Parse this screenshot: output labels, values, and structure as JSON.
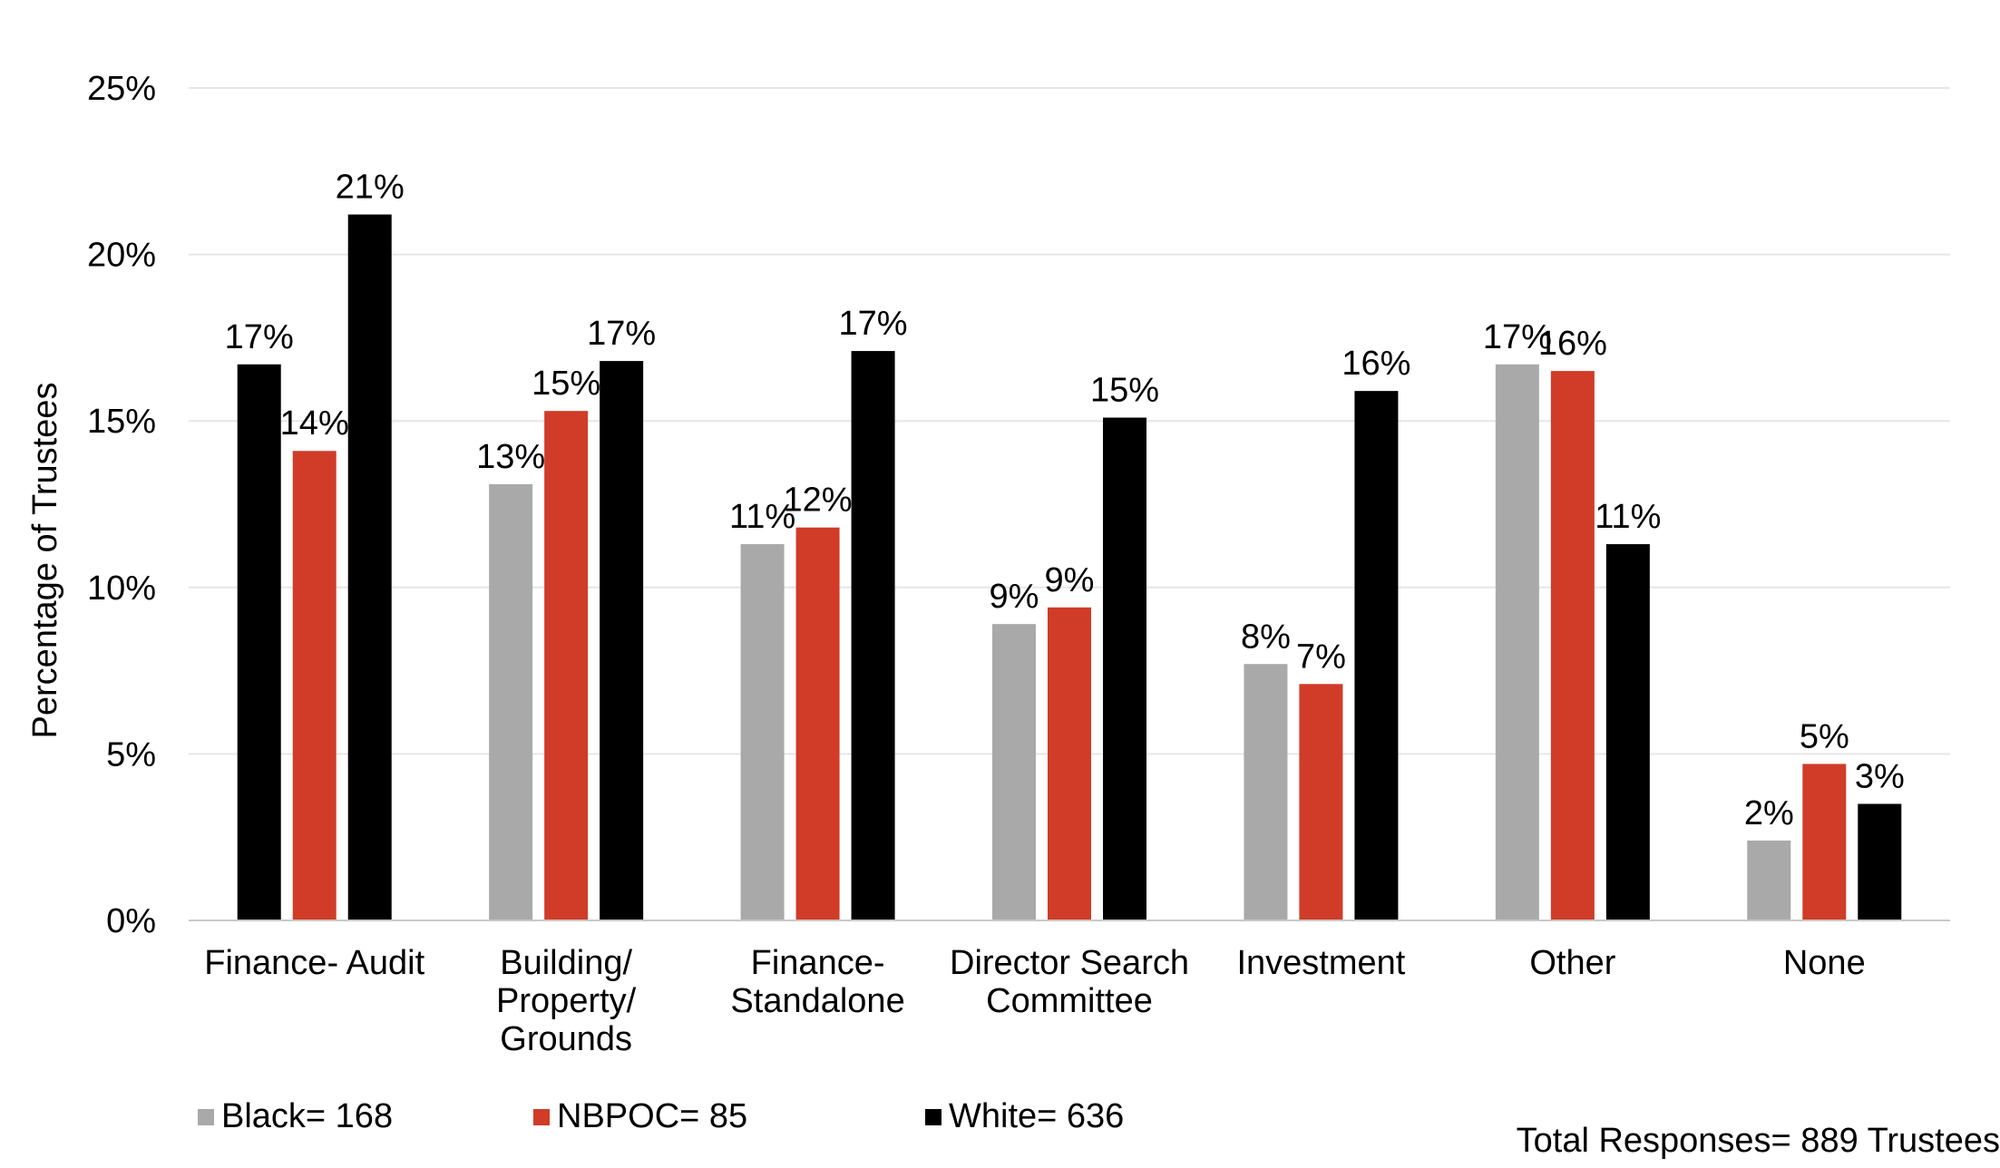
{
  "chart_data": {
    "type": "bar",
    "title": "",
    "xlabel": "",
    "ylabel": "Percentage of Trustees",
    "ylim": [
      0,
      25
    ],
    "yticks": [
      "0%",
      "5%",
      "10%",
      "15%",
      "20%",
      "25%"
    ],
    "grid": true,
    "legend_position": "bottom-left",
    "categories": [
      [
        "Finance- Audit"
      ],
      [
        "Building/",
        "Property/",
        "Grounds"
      ],
      [
        "Finance-",
        "Standalone"
      ],
      [
        "Director Search",
        "Committee"
      ],
      [
        "Investment"
      ],
      [
        "Other"
      ],
      [
        "None"
      ]
    ],
    "series": [
      {
        "name": "Black= 168",
        "color": "#000000",
        "values": [
          16.7,
          13.1,
          11.3,
          8.9,
          7.7,
          16.7,
          2.4
        ],
        "labels": [
          "17%",
          "13%",
          "11%",
          "9%",
          "8%",
          "17%",
          "2%"
        ],
        "colors": [
          "#000000",
          "#a9a9a9",
          "#a9a9a9",
          "#a9a9a9",
          "#a9a9a9",
          "#a9a9a9",
          "#a9a9a9"
        ]
      },
      {
        "name": "NBPOC= 85",
        "color": "#d03c28",
        "values": [
          14.1,
          15.3,
          11.8,
          9.4,
          7.1,
          16.5,
          4.7
        ],
        "labels": [
          "14%",
          "15%",
          "12%",
          "9%",
          "7%",
          "16%",
          "5%"
        ]
      },
      {
        "name": "White= 636",
        "color": "#000000",
        "values": [
          21.2,
          16.8,
          17.1,
          15.1,
          15.9,
          11.3,
          3.5
        ],
        "labels": [
          "21%",
          "17%",
          "17%",
          "15%",
          "16%",
          "11%",
          "3%"
        ]
      }
    ],
    "legend": [
      {
        "label": "Black= 168",
        "color": "#a9a9a9"
      },
      {
        "label": "NBPOC= 85",
        "color": "#d03c28"
      },
      {
        "label": "White= 636",
        "color": "#000000"
      }
    ],
    "annotation": "Total Responses= 889 Trustees"
  }
}
